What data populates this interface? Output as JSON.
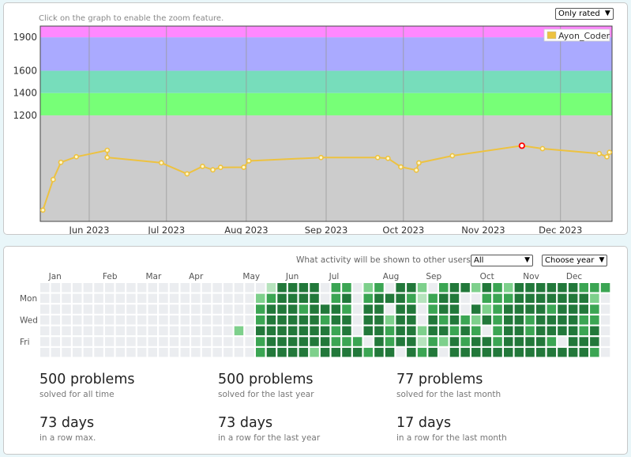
{
  "rating_panel": {
    "hint": "Click on the graph to enable the zoom feature.",
    "filter_select": {
      "value": "Only rated"
    },
    "legend": {
      "name": "Ayon_Coder",
      "color": "#edc240"
    }
  },
  "chart_data": {
    "type": "line",
    "y_ticks": [
      1200,
      1400,
      1600,
      1900
    ],
    "x_ticks": [
      "Jun 2023",
      "Jul 2023",
      "Aug 2023",
      "Sep 2023",
      "Oct 2023",
      "Nov 2023",
      "Dec 2023"
    ],
    "xlim": [
      "2023-05-13",
      "2023-12-21"
    ],
    "ylim": [
      250,
      2000
    ],
    "grid": true,
    "legend_position": "top-right",
    "bands": [
      {
        "from": 250,
        "to": 1200,
        "color": "#cccccc"
      },
      {
        "from": 1200,
        "to": 1400,
        "color": "#77ff77"
      },
      {
        "from": 1400,
        "to": 1600,
        "color": "#77ddbb"
      },
      {
        "from": 1600,
        "to": 1900,
        "color": "#aaaaff"
      },
      {
        "from": 1900,
        "to": 2000,
        "color": "#ff88ff"
      }
    ],
    "series": [
      {
        "name": "Ayon_Coder",
        "color": "#edc240",
        "points": [
          {
            "x": "2023-05-14",
            "y": 351
          },
          {
            "x": "2023-05-18",
            "y": 625
          },
          {
            "x": "2023-05-21",
            "y": 779
          },
          {
            "x": "2023-05-27",
            "y": 829
          },
          {
            "x": "2023-06-08",
            "y": 887
          },
          {
            "x": "2023-06-08",
            "y": 823
          },
          {
            "x": "2023-06-29",
            "y": 775
          },
          {
            "x": "2023-07-09",
            "y": 676
          },
          {
            "x": "2023-07-15",
            "y": 743
          },
          {
            "x": "2023-07-19",
            "y": 712
          },
          {
            "x": "2023-07-22",
            "y": 734
          },
          {
            "x": "2023-07-31",
            "y": 735
          },
          {
            "x": "2023-08-02",
            "y": 792
          },
          {
            "x": "2023-08-30",
            "y": 822
          },
          {
            "x": "2023-09-21",
            "y": 822
          },
          {
            "x": "2023-09-25",
            "y": 815
          },
          {
            "x": "2023-09-30",
            "y": 738
          },
          {
            "x": "2023-10-06",
            "y": 709
          },
          {
            "x": "2023-10-07",
            "y": 774
          },
          {
            "x": "2023-10-20",
            "y": 838
          },
          {
            "x": "2023-11-16",
            "y": 928,
            "highlight": true
          },
          {
            "x": "2023-11-24",
            "y": 902
          },
          {
            "x": "2023-12-16",
            "y": 857
          },
          {
            "x": "2023-12-19",
            "y": 829
          },
          {
            "x": "2023-12-20",
            "y": 869
          }
        ]
      }
    ]
  },
  "activity_panel": {
    "visibility_label": "What activity will be shown to other users:",
    "visibility_select": {
      "value": "All"
    },
    "year_select": {
      "value": "Choose year"
    },
    "months": [
      "Jan",
      "Feb",
      "Mar",
      "Apr",
      "May",
      "Jun",
      "Jul",
      "Aug",
      "Sep",
      "Oct",
      "Nov",
      "Dec"
    ],
    "days": [
      "Mon",
      "Wed",
      "Fri"
    ],
    "heatmap": {
      "weeks": 53,
      "level_colors": [
        "#ebedf0",
        "#b6e3bd",
        "#7ed08c",
        "#3ba553",
        "#22783a"
      ],
      "columns": [
        "0000000",
        "0000000",
        "0000000",
        "0000000",
        "0000000",
        "0000000",
        "0000000",
        "0000000",
        "0000000",
        "0000000",
        "0000000",
        "0000000",
        "0000000",
        "0000000",
        "0000000",
        "0000000",
        "0000000",
        "0000000",
        "0000200",
        "0000000",
        "0233433",
        "1344444",
        "4444444",
        "4444444",
        "4434444",
        "4444442",
        "0043444",
        "3344334",
        "3434434",
        "0000034",
        "2344403",
        "3444444",
        "0402334",
        "4444440",
        "4344444",
        "2100213",
        "0334434",
        "3443420",
        "4444344",
        "4003434",
        "2042344",
        "4324044",
        "3333334",
        "2344444",
        "4444444",
        "4443344",
        "4444444",
        "4434434",
        "4444404",
        "4444444",
        "3443344",
        "3233443",
        "3000000"
      ]
    },
    "stats": [
      {
        "value": "500 problems",
        "caption": "solved for all time"
      },
      {
        "value": "500 problems",
        "caption": "solved for the last year"
      },
      {
        "value": "77 problems",
        "caption": "solved for the last month"
      },
      {
        "value": "73 days",
        "caption": "in a row max."
      },
      {
        "value": "73 days",
        "caption": "in a row for the last year"
      },
      {
        "value": "17 days",
        "caption": "in a row for the last month"
      }
    ]
  }
}
